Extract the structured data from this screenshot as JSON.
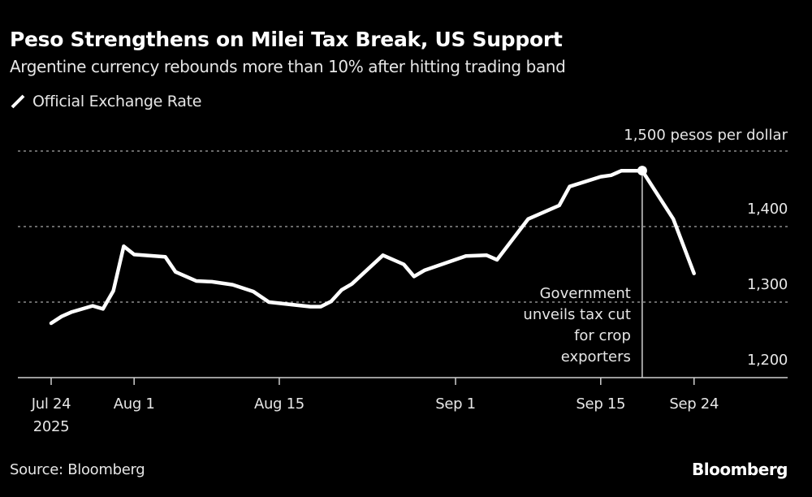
{
  "header": {
    "title": "Peso Strengthens on Milei Tax Break, US Support",
    "subtitle": "Argentine currency rebounds more than 10% after hitting trading band"
  },
  "legend": {
    "items": [
      {
        "label": "Official Exchange Rate",
        "color": "#ffffff",
        "icon": "line-swatch-icon"
      }
    ]
  },
  "footer": {
    "source": "Source: Bloomberg",
    "brand": "Bloomberg"
  },
  "colors": {
    "background": "#000000",
    "line": "#ffffff",
    "grid": "#8c8c8c",
    "axis": "#d0d0d0",
    "text": "#e6e6e6"
  },
  "chart_data": {
    "type": "line",
    "title": "Peso Strengthens on Milei Tax Break, US Support",
    "subtitle": "Argentine currency rebounds more than 10% after hitting trading band",
    "xlabel": "",
    "ylabel": "pesos per dollar",
    "unit_label": "1,500 pesos per dollar",
    "ylim": [
      1200,
      1500
    ],
    "y_ticks": [
      1200,
      1300,
      1400,
      1500
    ],
    "y_tick_labels": [
      "1,200",
      "1,300",
      "1,400",
      "1,500 pesos per dollar"
    ],
    "xlim_days": [
      -3,
      70
    ],
    "x_ticks": [
      {
        "day": 0,
        "label": "Jul 24",
        "sublabel": "2025"
      },
      {
        "day": 8,
        "label": "Aug 1",
        "sublabel": ""
      },
      {
        "day": 22,
        "label": "Aug 15",
        "sublabel": ""
      },
      {
        "day": 39,
        "label": "Sep 1",
        "sublabel": ""
      },
      {
        "day": 53,
        "label": "Sep 15",
        "sublabel": ""
      },
      {
        "day": 62,
        "label": "Sep 24",
        "sublabel": ""
      }
    ],
    "grid": true,
    "legend_position": "top-left",
    "series": [
      {
        "name": "Official Exchange Rate",
        "x_day": [
          0,
          1,
          2,
          4,
          5,
          6,
          7,
          8,
          11,
          12,
          14,
          15.5,
          17.5,
          19.5,
          21,
          25,
          26,
          27,
          28,
          29,
          32,
          34,
          35,
          36,
          40,
          42,
          43,
          46,
          49,
          50,
          53,
          54,
          55,
          57,
          60,
          62
        ],
        "values": [
          1272,
          1281,
          1287,
          1295,
          1291,
          1315,
          1374,
          1363,
          1360,
          1340,
          1328,
          1327,
          1323,
          1314,
          1300,
          1294,
          1294,
          1301,
          1316,
          1324,
          1362,
          1350,
          1334,
          1342,
          1361,
          1362,
          1356,
          1410,
          1428,
          1453,
          1466,
          1468,
          1474,
          1474,
          1410,
          1338
        ]
      }
    ],
    "annotations": [
      {
        "day": 57,
        "value": 1474,
        "type": "vertical-line-with-marker",
        "text_lines": [
          "Government",
          "unveils tax cut",
          "for crop",
          "exporters"
        ]
      }
    ]
  }
}
